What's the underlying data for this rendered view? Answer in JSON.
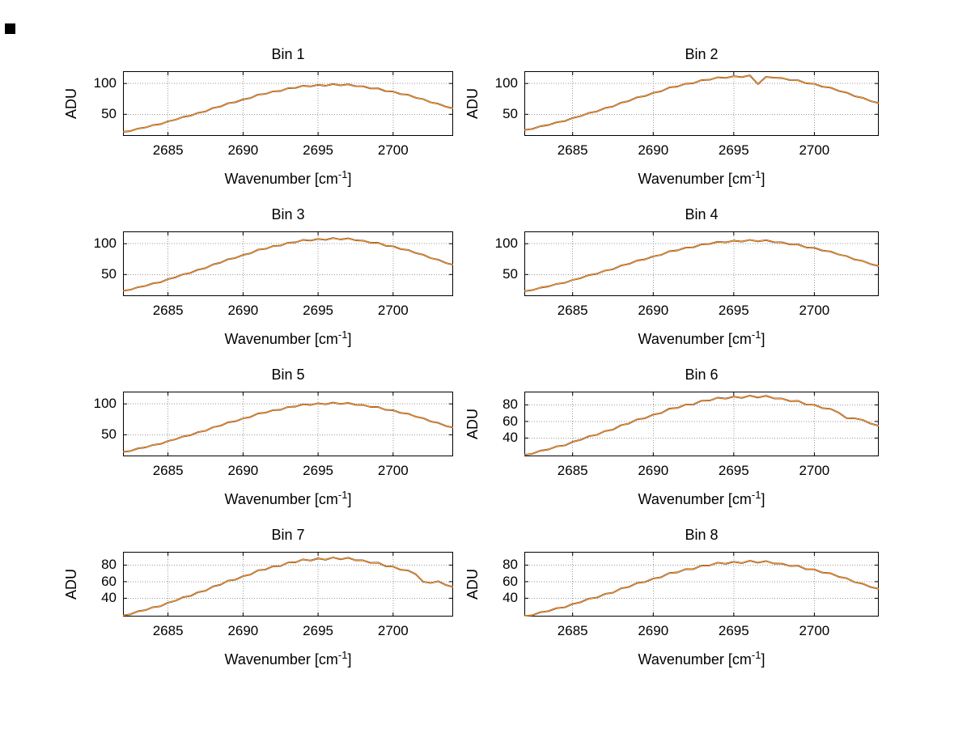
{
  "figure": {
    "background": "#ffffff"
  },
  "chart_data": {
    "type": "line",
    "xlabel": {
      "pre": "Wavenumber [cm",
      "sup": "-1",
      "post": "]"
    },
    "xlim": [
      2682,
      2704
    ],
    "xticks": [
      2685,
      2690,
      2695,
      2700
    ],
    "x_start": 2682,
    "x_step": 0.5,
    "grid": "dotted",
    "legend": "none",
    "series": [
      {
        "name": "series-blue",
        "color": "#2a2a9a",
        "width": 1.9
      },
      {
        "name": "series-red",
        "color": "#b83000",
        "width": 1.4
      },
      {
        "name": "series-yellow",
        "color": "#ffaa00",
        "width": 1.0
      }
    ],
    "subplots": [
      {
        "title": "Bin 1",
        "ylabel": "ADU",
        "yticks": [
          50,
          100
        ],
        "ylim": [
          15,
          120
        ],
        "values": [
          21.6,
          23.0,
          27.0,
          28.6,
          32.6,
          34.0,
          38.6,
          41.3,
          45.9,
          47.7,
          52.6,
          54.7,
          60.4,
          62.7,
          68.0,
          69.7,
          74.3,
          76.4,
          82.1,
          83.1,
          87.3,
          87.8,
          92.4,
          92.8,
          96.5,
          95.3,
          97.9,
          96.4,
          99.2,
          96.9,
          98.8,
          95.6,
          95.4,
          92.1,
          92.2,
          87.6,
          87.1,
          82.9,
          81.8,
          77.0,
          74.7,
          69.5,
          67.3,
          62.5,
          59.8
        ]
      },
      {
        "title": "Bin 2",
        "ylabel": "ADU",
        "yticks": [
          50,
          100
        ],
        "ylim": [
          15,
          120
        ],
        "values": [
          24.6,
          26.4,
          30.7,
          32.7,
          37.1,
          39.0,
          44.1,
          47.2,
          52.3,
          54.6,
          60.1,
          62.6,
          68.9,
          71.7,
          77.6,
          79.7,
          84.9,
          87.5,
          93.6,
          95.0,
          99.7,
          100.5,
          105.5,
          106.1,
          110.0,
          109.1,
          111.8,
          110.4,
          113.2,
          99.0,
          110.7,
          109.4,
          108.9,
          105.4,
          105.3,
          100.3,
          99.5,
          94.8,
          93.3,
          88.1,
          85.3,
          79.5,
          76.9,
          71.5,
          68.3
        ]
      },
      {
        "title": "Bin 3",
        "ylabel": "",
        "yticks": [
          50,
          100
        ],
        "ylim": [
          15,
          120
        ],
        "values": [
          23.7,
          25.4,
          29.6,
          31.6,
          35.8,
          37.5,
          42.5,
          45.5,
          50.5,
          52.7,
          57.9,
          60.4,
          66.5,
          69.2,
          74.9,
          76.9,
          81.8,
          84.3,
          90.3,
          91.6,
          96.2,
          96.9,
          101.8,
          102.3,
          106.2,
          105.2,
          107.8,
          106.4,
          109.2,
          106.9,
          108.7,
          105.5,
          105.1,
          101.6,
          101.6,
          96.7,
          96.0,
          91.4,
          90.0,
          84.9,
          82.2,
          76.7,
          74.2,
          69.0,
          65.9
        ]
      },
      {
        "title": "Bin 4",
        "ylabel": "",
        "yticks": [
          50,
          100
        ],
        "ylim": [
          15,
          120
        ],
        "values": [
          23.1,
          24.7,
          28.8,
          30.7,
          34.8,
          36.5,
          41.3,
          44.2,
          49.1,
          51.2,
          56.4,
          58.6,
          64.6,
          67.2,
          72.8,
          74.7,
          79.6,
          82.0,
          87.8,
          89.1,
          93.5,
          94.1,
          99.0,
          99.5,
          103.2,
          102.2,
          104.9,
          103.4,
          106.2,
          103.9,
          105.8,
          102.5,
          102.1,
          98.8,
          98.8,
          93.9,
          93.3,
          88.9,
          87.5,
          82.6,
          80.0,
          74.5,
          72.1,
          67.0,
          64.0
        ]
      },
      {
        "title": "Bin 5",
        "ylabel": "",
        "yticks": [
          50,
          100
        ],
        "ylim": [
          15,
          120
        ],
        "values": [
          22.2,
          23.7,
          27.8,
          29.5,
          33.5,
          35.1,
          39.8,
          42.5,
          47.3,
          49.2,
          54.2,
          56.4,
          62.2,
          64.6,
          70.1,
          71.8,
          76.6,
          78.8,
          84.5,
          85.7,
          90.0,
          90.5,
          95.2,
          95.7,
          99.4,
          98.3,
          100.9,
          99.4,
          102.2,
          99.9,
          101.8,
          98.6,
          98.3,
          95.0,
          95.0,
          90.3,
          89.8,
          85.5,
          84.2,
          79.4,
          77.0,
          71.6,
          69.4,
          64.4,
          61.6
        ]
      },
      {
        "title": "Bin 6",
        "ylabel": "ADU",
        "yticks": [
          40,
          60,
          80
        ],
        "ylim": [
          18,
          96
        ],
        "values": [
          19.8,
          21.1,
          24.8,
          26.3,
          30.0,
          31.1,
          35.5,
          37.9,
          42.2,
          43.8,
          48.4,
          50.1,
          55.5,
          57.6,
          62.6,
          63.9,
          68.3,
          70.1,
          75.5,
          76.3,
          80.3,
          80.5,
          85.0,
          85.2,
          88.7,
          87.5,
          90.0,
          88.4,
          91.2,
          88.9,
          90.9,
          87.8,
          87.6,
          84.5,
          84.8,
          80.3,
          80.1,
          76.1,
          75.2,
          70.7,
          64.0,
          63.7,
          61.9,
          57.4,
          54.9
        ]
      },
      {
        "title": "Bin 7",
        "ylabel": "ADU",
        "yticks": [
          40,
          60,
          80
        ],
        "ylim": [
          18,
          96
        ],
        "values": [
          19.4,
          20.6,
          24.3,
          25.7,
          29.3,
          30.4,
          34.7,
          37.0,
          41.3,
          42.8,
          47.3,
          49.0,
          54.3,
          56.3,
          61.2,
          62.5,
          66.7,
          68.5,
          73.8,
          74.6,
          78.5,
          78.7,
          83.1,
          83.3,
          86.8,
          85.5,
          88.0,
          86.4,
          89.2,
          86.9,
          88.9,
          85.8,
          85.7,
          82.6,
          82.9,
          78.5,
          78.3,
          74.4,
          73.5,
          69.1,
          60.0,
          58.5,
          60.5,
          56.1,
          53.7
        ]
      },
      {
        "title": "Bin 8",
        "ylabel": "ADU",
        "yticks": [
          40,
          60,
          80
        ],
        "ylim": [
          18,
          96
        ],
        "values": [
          18.5,
          19.6,
          23.2,
          24.5,
          28.0,
          29.0,
          33.2,
          35.3,
          39.5,
          40.8,
          45.2,
          46.7,
          51.9,
          53.7,
          58.5,
          59.6,
          63.7,
          65.4,
          70.5,
          71.1,
          75.0,
          75.1,
          79.4,
          79.5,
          82.9,
          81.6,
          84.0,
          82.4,
          85.2,
          82.9,
          84.9,
          81.9,
          81.7,
          78.8,
          79.2,
          74.9,
          74.8,
          70.9,
          70.2,
          66.0,
          64.1,
          59.4,
          57.6,
          53.5,
          51.3
        ]
      }
    ]
  }
}
